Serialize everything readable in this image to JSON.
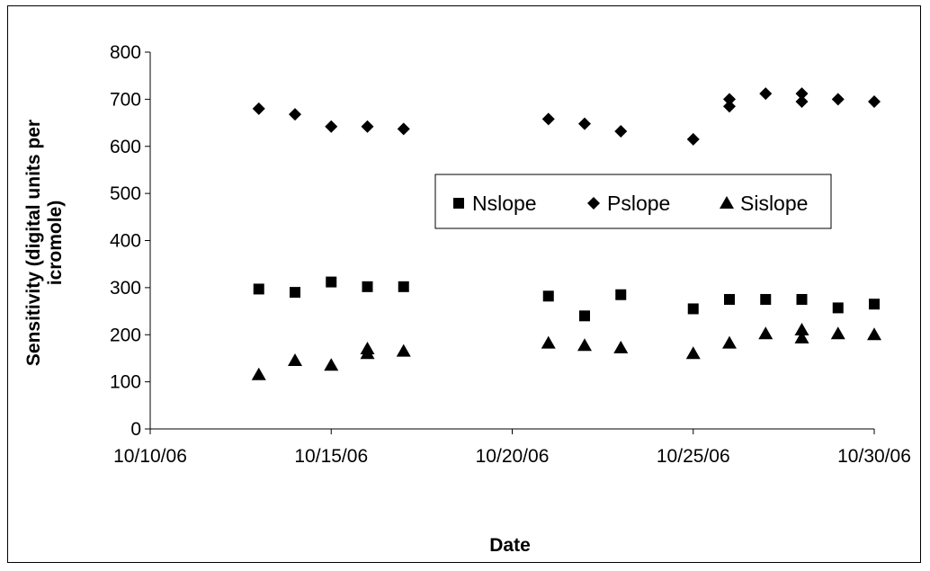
{
  "chart_data": {
    "type": "scatter",
    "xlabel": "Date",
    "ylabel": "Sensitivity (digital units per icromole)",
    "x_tick_labels": [
      "10/10/06",
      "10/15/06",
      "10/20/06",
      "10/25/06",
      "10/30/06"
    ],
    "x_ticks": [
      "2006-10-10",
      "2006-10-15",
      "2006-10-20",
      "2006-10-25",
      "2006-10-30"
    ],
    "xlim": [
      "2006-10-10",
      "2006-10-30"
    ],
    "y_ticks": [
      0,
      100,
      200,
      300,
      400,
      500,
      600,
      700,
      800
    ],
    "y_tick_labels": [
      "0",
      "100",
      "200",
      "300",
      "400",
      "500",
      "600",
      "700",
      "800"
    ],
    "ylim": [
      0,
      800
    ],
    "grid": false,
    "legend_position": "center-right",
    "series": [
      {
        "name": "Nslope",
        "marker": "square",
        "color": "#000000",
        "points": [
          [
            "2006-10-13",
            297
          ],
          [
            "2006-10-14",
            290
          ],
          [
            "2006-10-15",
            312
          ],
          [
            "2006-10-16",
            302
          ],
          [
            "2006-10-17",
            302
          ],
          [
            "2006-10-21",
            282
          ],
          [
            "2006-10-22",
            240
          ],
          [
            "2006-10-23",
            285
          ],
          [
            "2006-10-25",
            255
          ],
          [
            "2006-10-26",
            275
          ],
          [
            "2006-10-27",
            275
          ],
          [
            "2006-10-28",
            275
          ],
          [
            "2006-10-29",
            257
          ],
          [
            "2006-10-30",
            265
          ]
        ]
      },
      {
        "name": "Pslope",
        "marker": "diamond",
        "color": "#000000",
        "points": [
          [
            "2006-10-13",
            680
          ],
          [
            "2006-10-14",
            668
          ],
          [
            "2006-10-15",
            642
          ],
          [
            "2006-10-16",
            642
          ],
          [
            "2006-10-17",
            637
          ],
          [
            "2006-10-21",
            658
          ],
          [
            "2006-10-22",
            648
          ],
          [
            "2006-10-23",
            632
          ],
          [
            "2006-10-25",
            615
          ],
          [
            "2006-10-26",
            700
          ],
          [
            "2006-10-26",
            685
          ],
          [
            "2006-10-27",
            712
          ],
          [
            "2006-10-28",
            712
          ],
          [
            "2006-10-28",
            695
          ],
          [
            "2006-10-29",
            700
          ],
          [
            "2006-10-30",
            695
          ]
        ]
      },
      {
        "name": "Sislope",
        "marker": "triangle",
        "color": "#000000",
        "points": [
          [
            "2006-10-13",
            115
          ],
          [
            "2006-10-14",
            145
          ],
          [
            "2006-10-15",
            135
          ],
          [
            "2006-10-16",
            170
          ],
          [
            "2006-10-16",
            160
          ],
          [
            "2006-10-17",
            165
          ],
          [
            "2006-10-21",
            182
          ],
          [
            "2006-10-22",
            177
          ],
          [
            "2006-10-23",
            172
          ],
          [
            "2006-10-25",
            160
          ],
          [
            "2006-10-26",
            182
          ],
          [
            "2006-10-27",
            202
          ],
          [
            "2006-10-28",
            210
          ],
          [
            "2006-10-28",
            193
          ],
          [
            "2006-10-29",
            202
          ],
          [
            "2006-10-30",
            200
          ]
        ]
      }
    ]
  }
}
